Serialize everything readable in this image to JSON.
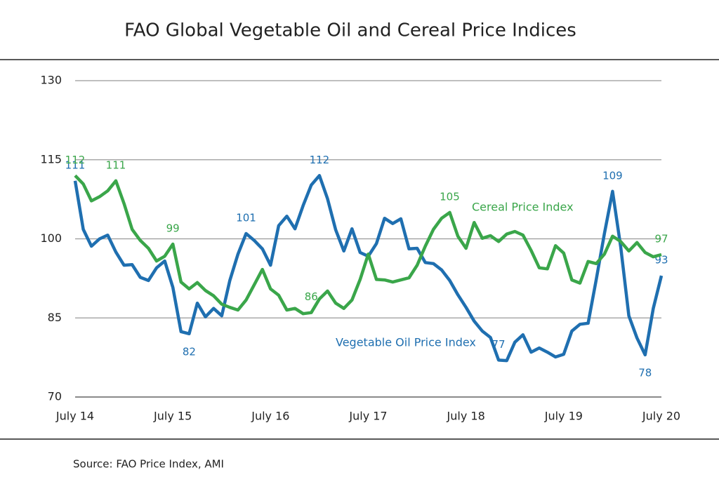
{
  "chart_data": {
    "type": "line",
    "title": "FAO Global Vegetable Oil and Cereal Price Indices",
    "source": "Source: FAO Price Index, AMI",
    "categories": [
      "July 14",
      null,
      null,
      null,
      null,
      null,
      null,
      null,
      null,
      null,
      null,
      null,
      "July 15",
      null,
      null,
      null,
      null,
      null,
      null,
      null,
      null,
      null,
      null,
      null,
      "July 16",
      null,
      null,
      null,
      null,
      null,
      null,
      null,
      null,
      null,
      null,
      null,
      "July 17",
      null,
      null,
      null,
      null,
      null,
      null,
      null,
      null,
      null,
      null,
      null,
      "July 18",
      null,
      null,
      null,
      null,
      null,
      null,
      null,
      null,
      null,
      null,
      null,
      "July 19",
      null,
      null,
      null,
      null,
      null,
      null,
      null,
      null,
      null,
      null,
      null,
      "July 20"
    ],
    "ylim": [
      70,
      130
    ],
    "yticks": [
      70,
      85,
      100,
      115,
      130
    ],
    "grid": true,
    "series": [
      {
        "name": "Vegetable Oil Price Index",
        "color": "#1f6fb0",
        "values": [
          111,
          101.8,
          98.6,
          100,
          100.7,
          97.5,
          95,
          95.1,
          92.7,
          92.1,
          94.5,
          95.8,
          90.8,
          82.4,
          82,
          87.8,
          85.2,
          86.8,
          85.4,
          92.1,
          97.1,
          101,
          99.7,
          98.1,
          95,
          102.5,
          104.3,
          101.9,
          106.3,
          110.2,
          112,
          107.6,
          101.7,
          97.7,
          101.9,
          97.4,
          96.7,
          99.1,
          103.9,
          102.9,
          103.8,
          98.1,
          98.2,
          95.5,
          95.3,
          94.1,
          92.1,
          89.4,
          87,
          84.4,
          82.5,
          81.3,
          77,
          76.9,
          80.4,
          81.8,
          78.5,
          79.3,
          78.5,
          77.6,
          78.1,
          82.5,
          83.8,
          84,
          92.3,
          101,
          109,
          98.5,
          85.4,
          81.2,
          78,
          86.8,
          93
        ],
        "value_labels": [
          "111",
          null,
          null,
          null,
          null,
          null,
          null,
          null,
          null,
          null,
          null,
          null,
          null,
          null,
          "82",
          null,
          null,
          null,
          null,
          null,
          null,
          "101",
          null,
          null,
          null,
          null,
          null,
          null,
          null,
          null,
          "112",
          null,
          null,
          null,
          null,
          null,
          null,
          null,
          null,
          null,
          null,
          null,
          null,
          null,
          null,
          null,
          null,
          null,
          null,
          null,
          null,
          null,
          "77",
          null,
          null,
          null,
          null,
          null,
          null,
          null,
          null,
          null,
          null,
          null,
          null,
          null,
          "109",
          null,
          null,
          null,
          "78",
          null,
          "93"
        ]
      },
      {
        "name": "Cereal Price Index",
        "color": "#3aa64a",
        "values": [
          112,
          110.4,
          107.2,
          108,
          109.1,
          111,
          106.7,
          101.8,
          99.7,
          98.2,
          95.8,
          96.7,
          99,
          91.8,
          90.5,
          91.7,
          90.2,
          89.2,
          87.6,
          87,
          86.5,
          88.4,
          91.3,
          94.2,
          90.5,
          89.3,
          86.5,
          86.8,
          85.8,
          86,
          88.6,
          90.1,
          87.8,
          86.8,
          88.4,
          92.3,
          97.1,
          92.3,
          92.2,
          91.8,
          92.2,
          92.6,
          95,
          98.6,
          101.8,
          103.9,
          105,
          100.5,
          98.2,
          103.1,
          100.1,
          100.6,
          99.5,
          100.9,
          101.4,
          100.7,
          97.8,
          94.5,
          94.3,
          98.7,
          97.3,
          92.2,
          91.6,
          95.7,
          95.3,
          97.1,
          100.5,
          99.5,
          97.7,
          99.3,
          97.4,
          96.6,
          97
        ],
        "value_labels": [
          "112",
          null,
          null,
          null,
          null,
          "111",
          null,
          null,
          null,
          null,
          null,
          null,
          "99",
          null,
          null,
          null,
          null,
          null,
          null,
          null,
          null,
          null,
          null,
          null,
          null,
          null,
          null,
          null,
          null,
          "86",
          null,
          null,
          null,
          null,
          null,
          null,
          null,
          null,
          null,
          null,
          null,
          null,
          null,
          null,
          null,
          null,
          "105",
          null,
          null,
          null,
          null,
          null,
          null,
          null,
          null,
          null,
          null,
          null,
          null,
          null,
          null,
          null,
          null,
          null,
          null,
          null,
          null,
          null,
          null,
          null,
          null,
          null,
          "97"
        ]
      }
    ]
  }
}
